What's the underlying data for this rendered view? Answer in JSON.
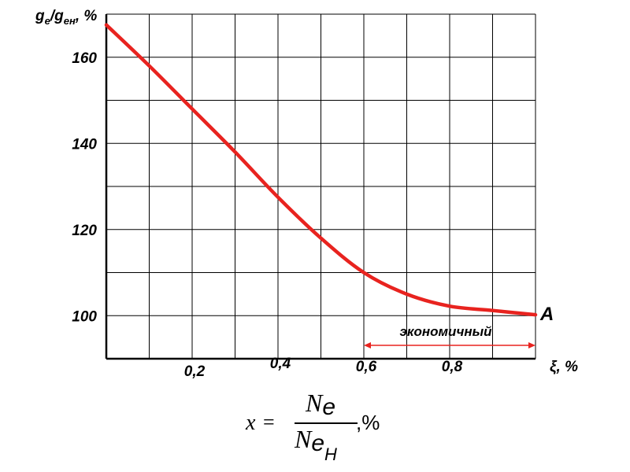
{
  "chart_data": {
    "type": "line",
    "ylabel_parts": {
      "g1": "g",
      "sub1": "e",
      "slash": "/",
      "g2": "g",
      "sub2": "ен",
      "rest": ", %"
    },
    "xlabel": "ξ, %",
    "xlim": [
      0,
      1.0
    ],
    "ylim": [
      90,
      170
    ],
    "x_ticks": [
      0.2,
      0.4,
      0.6,
      0.8
    ],
    "x_tick_labels": [
      "0,2",
      "0,4",
      "0,6",
      "0,8"
    ],
    "y_ticks": [
      100,
      120,
      140,
      160
    ],
    "y_tick_labels": [
      "100",
      "120",
      "140",
      "160"
    ],
    "grid": true,
    "series": [
      {
        "x": [
          0.0,
          0.1,
          0.2,
          0.3,
          0.4,
          0.5,
          0.6,
          0.7,
          0.8,
          0.9,
          1.0
        ],
        "y": [
          167.5,
          158,
          148,
          138,
          127.5,
          118,
          110,
          105,
          102.2,
          101.2,
          100.2
        ],
        "color": "#e8231f"
      }
    ],
    "annotations": {
      "point_label": "A",
      "range_label": "экономичный",
      "range_x": [
        0.6,
        1.0
      ],
      "range_color": "#e8231f"
    }
  },
  "formula": {
    "lhs": "x",
    "eq": "=",
    "num_N": "N",
    "num_e": "e",
    "den_N": "N",
    "den_e": "e",
    "den_sub": "H",
    "unit": ",%"
  }
}
